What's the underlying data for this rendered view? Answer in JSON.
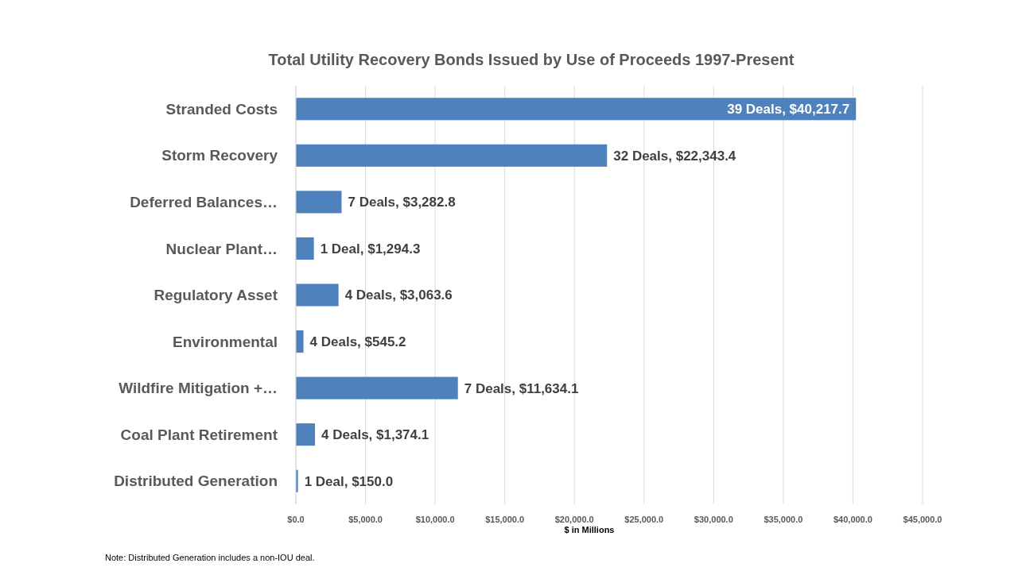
{
  "chart_data": {
    "type": "bar",
    "orientation": "horizontal",
    "title": "Total Utility Recovery Bonds Issued by Use of Proceeds 1997-Present",
    "xlabel": "$ in Millions",
    "categories": [
      "Stranded Costs",
      "Storm Recovery",
      "Deferred Balances…",
      "Nuclear Plant…",
      "Regulatory Asset",
      "Environmental",
      "Wildfire Mitigation +…",
      "Coal Plant Retirement",
      "Distributed Generation"
    ],
    "values": [
      40217.7,
      22343.4,
      3282.8,
      1294.3,
      3063.6,
      545.2,
      11634.1,
      1374.1,
      150.0
    ],
    "value_labels": [
      "39 Deals, $40,217.7",
      "32 Deals, $22,343.4",
      "7 Deals, $3,282.8",
      "1 Deal, $1,294.3",
      "4 Deals, $3,063.6",
      "4 Deals, $545.2",
      "7 Deals, $11,634.1",
      "4 Deals, $1,374.1",
      "1 Deal, $150.0"
    ],
    "color": "#4f81bd",
    "xlim": [
      0,
      45000
    ],
    "xticks": [
      {
        "value": 0,
        "label": "$0.0"
      },
      {
        "value": 5000,
        "label": "$5,000.0"
      },
      {
        "value": 10000,
        "label": "$10,000.0"
      },
      {
        "value": 15000,
        "label": "$15,000.0"
      },
      {
        "value": 20000,
        "label": "$20,000.0"
      },
      {
        "value": 25000,
        "label": "$25,000.0"
      },
      {
        "value": 30000,
        "label": "$30,000.0"
      },
      {
        "value": 35000,
        "label": "$35,000.0"
      },
      {
        "value": 40000,
        "label": "$40,000.0"
      },
      {
        "value": 45000,
        "label": "$45,000.0"
      }
    ],
    "grid": "x",
    "annotations": [
      "Note: Distributed Generation includes a non-IOU deal."
    ]
  }
}
